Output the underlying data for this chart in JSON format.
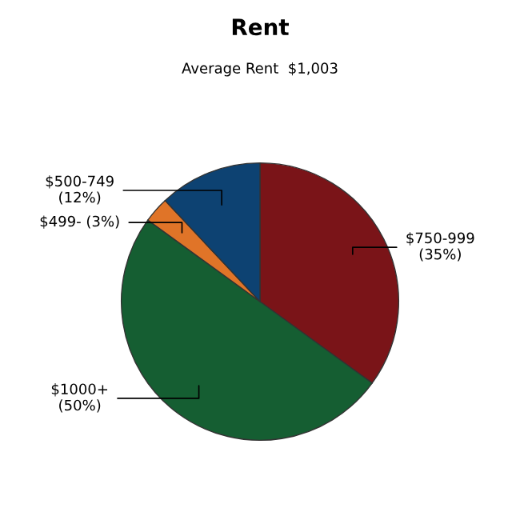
{
  "chart_data": {
    "type": "pie",
    "title": "Rent",
    "subtitle": "Average Rent  $1,003",
    "categories": [
      "$750-999",
      "$1000+",
      "$499-",
      "$500-749"
    ],
    "values": [
      35,
      50,
      3,
      12
    ],
    "value_labels": [
      "(35%)",
      "(50%)",
      "(3%)",
      "(12%)"
    ],
    "colors": [
      "#7a1418",
      "#155e32",
      "#e07428",
      "#0d4272"
    ]
  }
}
